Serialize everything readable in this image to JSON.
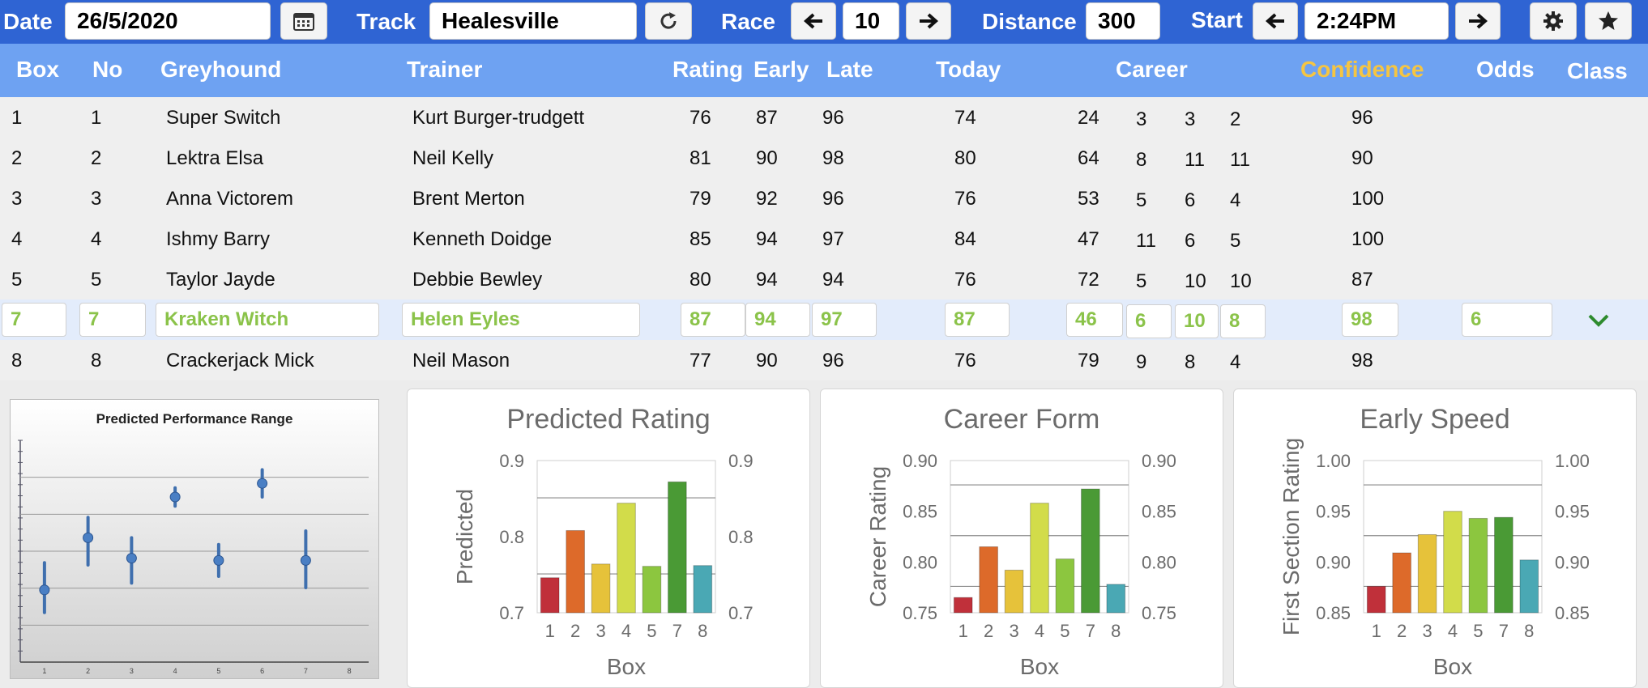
{
  "toolbar": {
    "date_label": "Date",
    "date_value": "26/5/2020",
    "track_label": "Track",
    "track_value": "Healesville",
    "race_label": "Race",
    "race_value": "10",
    "distance_label": "Distance",
    "distance_value": "300",
    "start_label": "Start",
    "start_value": "2:24PM"
  },
  "columns": {
    "box": "Box",
    "no": "No",
    "greyhound": "Greyhound",
    "trainer": "Trainer",
    "rating": "Rating",
    "early": "Early",
    "late": "Late",
    "today": "Today",
    "career": "Career",
    "confidence": "Confidence",
    "odds": "Odds",
    "class": "Class"
  },
  "colors": {
    "toolbar": "#2f64d3",
    "header": "#6ea2f2",
    "confidence_header": "#f5c542",
    "selected_text": "#8bc34a"
  },
  "rows": [
    {
      "box": "1",
      "no": "1",
      "greyhound": "Super Switch",
      "trainer": "Kurt Burger-trudgett",
      "rating": "76",
      "early": "87",
      "late": "96",
      "today": "74",
      "c1": "24",
      "c2": "3",
      "c3": "3",
      "c4": "2",
      "confidence": "96",
      "odds": "",
      "selected": false
    },
    {
      "box": "2",
      "no": "2",
      "greyhound": "Lektra Elsa",
      "trainer": "Neil Kelly",
      "rating": "81",
      "early": "90",
      "late": "98",
      "today": "80",
      "c1": "64",
      "c2": "8",
      "c3": "11",
      "c4": "11",
      "confidence": "90",
      "odds": "",
      "selected": false
    },
    {
      "box": "3",
      "no": "3",
      "greyhound": "Anna Victorem",
      "trainer": "Brent Merton",
      "rating": "79",
      "early": "92",
      "late": "96",
      "today": "76",
      "c1": "53",
      "c2": "5",
      "c3": "6",
      "c4": "4",
      "confidence": "100",
      "odds": "",
      "selected": false
    },
    {
      "box": "4",
      "no": "4",
      "greyhound": "Ishmy Barry",
      "trainer": "Kenneth Doidge",
      "rating": "85",
      "early": "94",
      "late": "97",
      "today": "84",
      "c1": "47",
      "c2": "11",
      "c3": "6",
      "c4": "5",
      "confidence": "100",
      "odds": "",
      "selected": false
    },
    {
      "box": "5",
      "no": "5",
      "greyhound": "Taylor Jayde",
      "trainer": "Debbie Bewley",
      "rating": "80",
      "early": "94",
      "late": "94",
      "today": "76",
      "c1": "72",
      "c2": "5",
      "c3": "10",
      "c4": "10",
      "confidence": "87",
      "odds": "",
      "selected": false
    },
    {
      "box": "7",
      "no": "7",
      "greyhound": "Kraken Witch",
      "trainer": "Helen Eyles",
      "rating": "87",
      "early": "94",
      "late": "97",
      "today": "87",
      "c1": "46",
      "c2": "6",
      "c3": "10",
      "c4": "8",
      "confidence": "98",
      "odds": "6",
      "selected": true
    },
    {
      "box": "8",
      "no": "8",
      "greyhound": "Crackerjack Mick",
      "trainer": "Neil Mason",
      "rating": "77",
      "early": "90",
      "late": "96",
      "today": "76",
      "c1": "79",
      "c2": "9",
      "c3": "8",
      "c4": "4",
      "confidence": "98",
      "odds": "",
      "selected": false
    }
  ],
  "chart_data": [
    {
      "type": "scatter",
      "title": "Predicted Performance Range",
      "categories": [
        "1",
        "2",
        "3",
        "4",
        "5",
        "6",
        "7",
        "8"
      ],
      "points": [
        {
          "x": "1",
          "y": 0.34,
          "low": 0.24,
          "high": 0.46
        },
        {
          "x": "2",
          "y": 0.57,
          "low": 0.45,
          "high": 0.66
        },
        {
          "x": "3",
          "y": 0.48,
          "low": 0.37,
          "high": 0.57
        },
        {
          "x": "4",
          "y": 0.75,
          "low": 0.71,
          "high": 0.79
        },
        {
          "x": "5",
          "y": 0.47,
          "low": 0.4,
          "high": 0.54
        },
        {
          "x": "6",
          "y": 0.81,
          "low": 0.75,
          "high": 0.87
        },
        {
          "x": "7",
          "y": 0.47,
          "low": 0.35,
          "high": 0.6
        }
      ]
    },
    {
      "type": "bar",
      "title": "Predicted Rating",
      "xlabel": "Box",
      "ylabel": "Predicted",
      "categories": [
        "1",
        "2",
        "3",
        "4",
        "5",
        "7",
        "8"
      ],
      "values": [
        0.746,
        0.808,
        0.764,
        0.844,
        0.761,
        0.872,
        0.762
      ],
      "ylim": [
        0.7,
        0.9
      ],
      "yticks": [
        "0.7",
        "0.8",
        "0.9"
      ],
      "hlines": [
        0.751,
        0.851
      ],
      "colors": [
        "#c0303a",
        "#dd6a2a",
        "#e6c23a",
        "#d2dc4a",
        "#8cc63f",
        "#4a9a35",
        "#4aa8b4"
      ]
    },
    {
      "type": "bar",
      "title": "Career Form",
      "xlabel": "Box",
      "ylabel": "Career Rating",
      "categories": [
        "1",
        "2",
        "3",
        "4",
        "5",
        "7",
        "8"
      ],
      "values": [
        0.765,
        0.815,
        0.792,
        0.858,
        0.803,
        0.872,
        0.778
      ],
      "ylim": [
        0.75,
        0.9
      ],
      "yticks": [
        "0.75",
        "0.80",
        "0.85",
        "0.90"
      ],
      "hlines": [
        0.776,
        0.826,
        0.876
      ],
      "colors": [
        "#c0303a",
        "#dd6a2a",
        "#e6c23a",
        "#d2dc4a",
        "#8cc63f",
        "#4a9a35",
        "#4aa8b4"
      ]
    },
    {
      "type": "bar",
      "title": "Early Speed",
      "xlabel": "Box",
      "ylabel": "First Section Rating",
      "categories": [
        "1",
        "2",
        "3",
        "4",
        "5",
        "7",
        "8"
      ],
      "values": [
        0.876,
        0.909,
        0.927,
        0.95,
        0.943,
        0.944,
        0.902
      ],
      "ylim": [
        0.85,
        1.0
      ],
      "yticks": [
        "0.85",
        "0.90",
        "0.95",
        "1.00"
      ],
      "hlines": [
        0.876,
        0.926,
        0.976
      ],
      "colors": [
        "#c0303a",
        "#dd6a2a",
        "#e6c23a",
        "#d2dc4a",
        "#8cc63f",
        "#4a9a35",
        "#4aa8b4"
      ]
    }
  ]
}
